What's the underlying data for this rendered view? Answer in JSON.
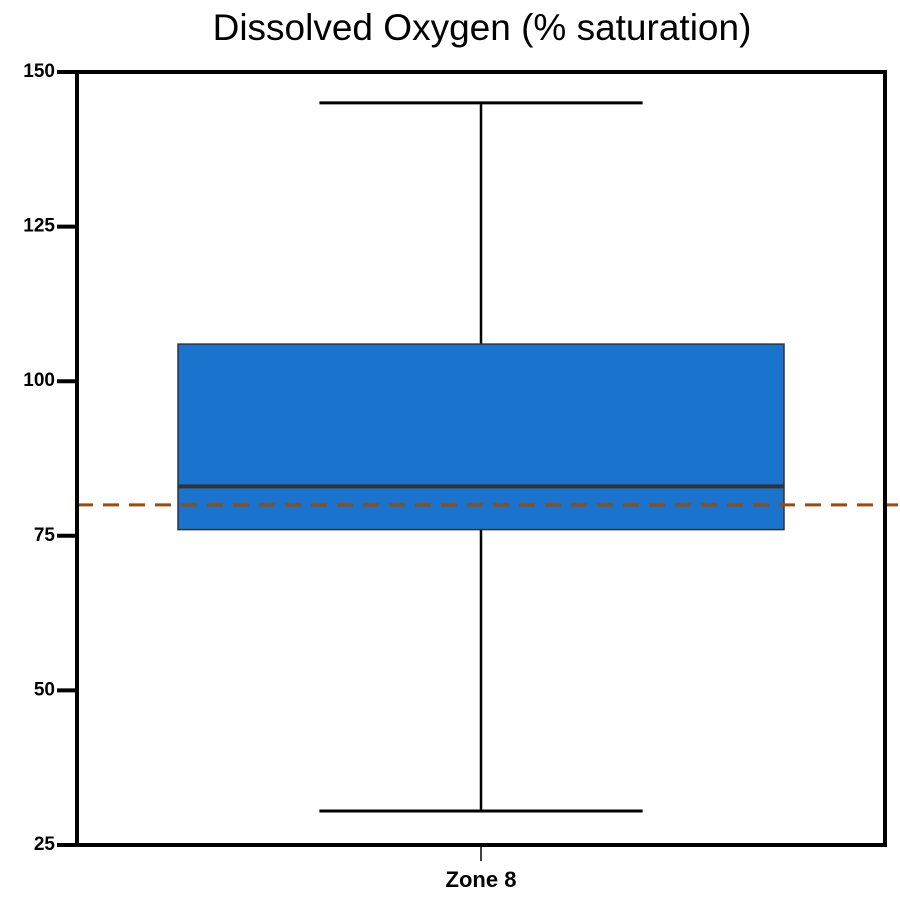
{
  "chart_data": {
    "type": "box",
    "title": "Dissolved Oxygen (% saturation)",
    "categories": [
      "Zone 8"
    ],
    "boxes": [
      {
        "min": 30.5,
        "q1": 76,
        "median": 83,
        "q3": 106,
        "max": 145
      }
    ],
    "color": "#1a73cc",
    "reference_line": {
      "value": 80,
      "color": "#9c4a0a"
    },
    "ylim": [
      25,
      150
    ],
    "yticks": [
      25,
      50,
      75,
      100,
      125,
      150
    ]
  }
}
